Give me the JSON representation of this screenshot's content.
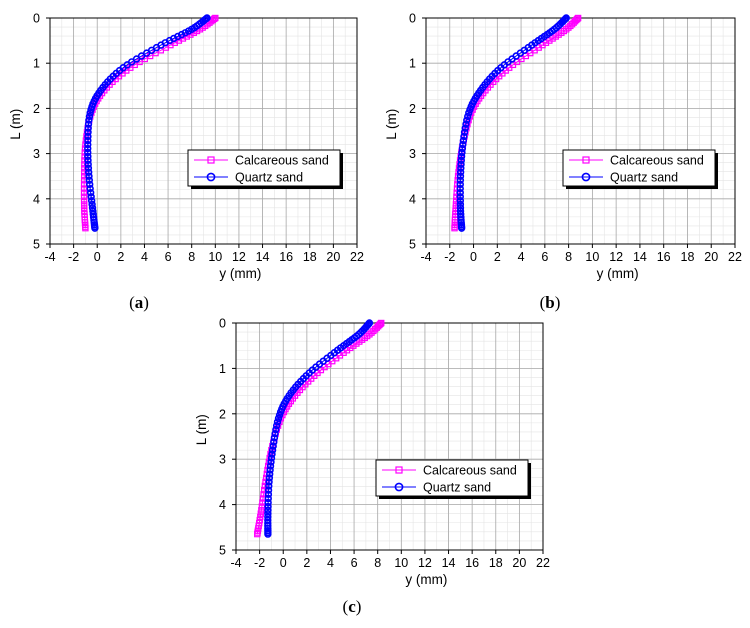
{
  "chart_data": [
    {
      "type": "scatter",
      "panel_label": "a",
      "title": "",
      "xlabel": "y (mm)",
      "ylabel": "L (m)",
      "xlim": [
        -4,
        22
      ],
      "ylim": [
        5,
        0
      ],
      "y_inverted": true,
      "x_ticks": [
        "-4",
        "-2",
        "0",
        "2",
        "4",
        "6",
        "8",
        "10",
        "12",
        "14",
        "16",
        "18",
        "20",
        "22"
      ],
      "y_ticks": [
        "0",
        "1",
        "2",
        "3",
        "4",
        "5"
      ],
      "grid": true,
      "legend_position": "center-right",
      "series": [
        {
          "name": "Calcareous sand",
          "color": "#ff00ff",
          "marker": "square",
          "x": [
            10.0,
            8.7,
            6.2,
            2.8,
            0.6,
            -0.5,
            -1.0,
            -1.1,
            -1.1,
            -1.0
          ],
          "y": [
            0.0,
            0.25,
            0.6,
            1.1,
            1.6,
            2.1,
            2.8,
            3.5,
            4.2,
            4.65
          ]
        },
        {
          "name": "Quartz sand",
          "color": "#0000ff",
          "marker": "circle",
          "x": [
            9.3,
            8.0,
            5.4,
            2.2,
            0.3,
            -0.6,
            -0.8,
            -0.7,
            -0.4,
            -0.2
          ],
          "y": [
            0.0,
            0.25,
            0.6,
            1.1,
            1.6,
            2.1,
            2.8,
            3.5,
            4.2,
            4.65
          ]
        }
      ]
    },
    {
      "type": "scatter",
      "panel_label": "b",
      "title": "",
      "xlabel": "y (mm)",
      "ylabel": "L (m)",
      "xlim": [
        -4,
        22
      ],
      "ylim": [
        5,
        0
      ],
      "y_inverted": true,
      "x_ticks": [
        "-4",
        "-2",
        "0",
        "2",
        "4",
        "6",
        "8",
        "10",
        "12",
        "14",
        "16",
        "18",
        "20",
        "22"
      ],
      "y_ticks": [
        "0",
        "1",
        "2",
        "3",
        "4",
        "5"
      ],
      "grid": true,
      "legend_position": "center-right",
      "series": [
        {
          "name": "Calcareous sand",
          "color": "#ff00ff",
          "marker": "square",
          "x": [
            8.8,
            7.8,
            5.8,
            3.0,
            1.0,
            -0.2,
            -0.9,
            -1.3,
            -1.5,
            -1.6
          ],
          "y": [
            0.0,
            0.25,
            0.6,
            1.1,
            1.6,
            2.1,
            2.8,
            3.5,
            4.2,
            4.65
          ]
        },
        {
          "name": "Quartz sand",
          "color": "#0000ff",
          "marker": "circle",
          "x": [
            7.8,
            6.8,
            4.9,
            2.3,
            0.6,
            -0.4,
            -0.9,
            -1.1,
            -1.1,
            -1.0
          ],
          "y": [
            0.0,
            0.25,
            0.6,
            1.1,
            1.6,
            2.1,
            2.8,
            3.5,
            4.2,
            4.65
          ]
        }
      ]
    },
    {
      "type": "scatter",
      "panel_label": "c",
      "title": "",
      "xlabel": "y (mm)",
      "ylabel": "L (m)",
      "xlim": [
        -4,
        22
      ],
      "ylim": [
        5,
        0
      ],
      "y_inverted": true,
      "x_ticks": [
        "-4",
        "-2",
        "0",
        "2",
        "4",
        "6",
        "8",
        "10",
        "12",
        "14",
        "16",
        "18",
        "20",
        "22"
      ],
      "y_ticks": [
        "0",
        "1",
        "2",
        "3",
        "4",
        "5"
      ],
      "grid": true,
      "legend_position": "center-right",
      "series": [
        {
          "name": "Calcareous sand",
          "color": "#ff00ff",
          "marker": "square",
          "x": [
            8.3,
            7.3,
            5.4,
            2.9,
            1.0,
            -0.2,
            -1.0,
            -1.5,
            -1.9,
            -2.2
          ],
          "y": [
            0.0,
            0.25,
            0.6,
            1.1,
            1.6,
            2.1,
            2.8,
            3.5,
            4.2,
            4.65
          ]
        },
        {
          "name": "Quartz sand",
          "color": "#0000ff",
          "marker": "circle",
          "x": [
            7.3,
            6.4,
            4.6,
            2.2,
            0.5,
            -0.4,
            -0.9,
            -1.2,
            -1.3,
            -1.3
          ],
          "y": [
            0.0,
            0.25,
            0.6,
            1.1,
            1.6,
            2.1,
            2.8,
            3.5,
            4.2,
            4.65
          ]
        }
      ]
    }
  ]
}
